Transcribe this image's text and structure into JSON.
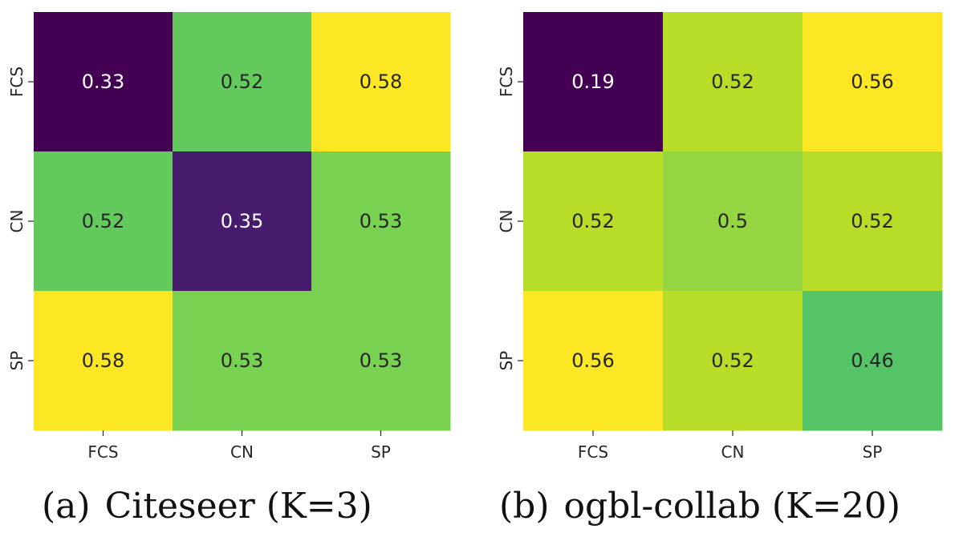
{
  "chart_data": [
    {
      "type": "heatmap",
      "caption_label": "(a)",
      "caption_title": "Citeseer (K=3)",
      "x_categories": [
        "FCS",
        "CN",
        "SP"
      ],
      "y_categories": [
        "FCS",
        "CN",
        "SP"
      ],
      "values": [
        [
          0.33,
          0.52,
          0.58
        ],
        [
          0.52,
          0.35,
          0.53
        ],
        [
          0.58,
          0.53,
          0.53
        ]
      ],
      "labels": [
        [
          "0.33",
          "0.52",
          "0.58"
        ],
        [
          "0.52",
          "0.35",
          "0.53"
        ],
        [
          "0.58",
          "0.53",
          "0.53"
        ]
      ],
      "colormap": "viridis",
      "colorbar": false
    },
    {
      "type": "heatmap",
      "caption_label": "(b)",
      "caption_title": "ogbl-collab (K=20)",
      "x_categories": [
        "FCS",
        "CN",
        "SP"
      ],
      "y_categories": [
        "FCS",
        "CN",
        "SP"
      ],
      "values": [
        [
          0.19,
          0.52,
          0.56
        ],
        [
          0.52,
          0.5,
          0.52
        ],
        [
          0.56,
          0.52,
          0.46
        ]
      ],
      "labels": [
        [
          "0.19",
          "0.52",
          "0.56"
        ],
        [
          "0.52",
          "0.5",
          "0.52"
        ],
        [
          "0.56",
          "0.52",
          "0.46"
        ]
      ],
      "colormap": "viridis",
      "colorbar": false
    }
  ]
}
